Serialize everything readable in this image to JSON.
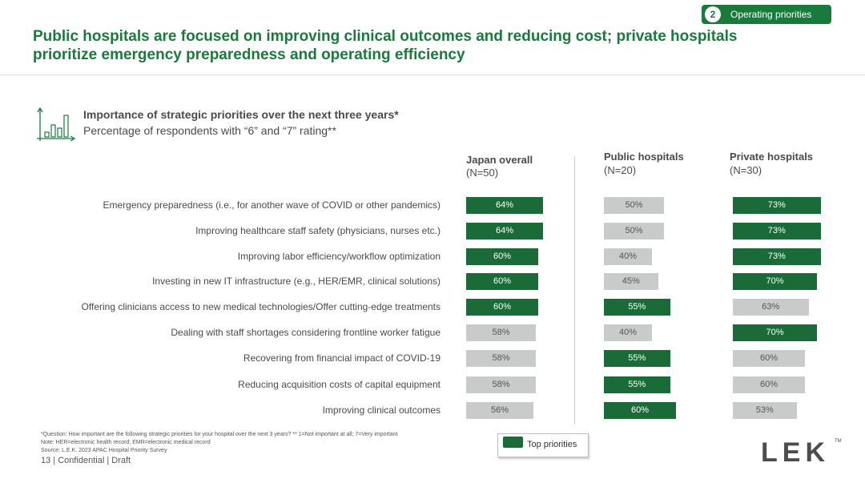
{
  "section": {
    "number": "2",
    "label": "Operating priorities"
  },
  "title": "Public hospitals are focused on improving clinical outcomes and reducing cost; private hospitals prioritize emergency preparedness and operating efficiency",
  "subtitle": {
    "line1": "Importance of strategic priorities over the next three years*",
    "line2": "Percentage of respondents with “6” and “7” rating**"
  },
  "columns": [
    {
      "name": "Japan overall",
      "n": "(N=50)"
    },
    {
      "name": "Public hospitals",
      "n": "(N=20)"
    },
    {
      "name": "Private hospitals",
      "n": "(N=30)"
    }
  ],
  "chart_data": {
    "type": "bar",
    "orientation": "horizontal",
    "title": "Importance of strategic priorities over the next three years*",
    "subtitle": "Percentage of respondents with “6” and “7” rating**",
    "unit": "%",
    "xlim": [
      0,
      100
    ],
    "categories": [
      "Emergency preparedness  (i.e., for another wave of COVID  or other pandemics)",
      "Improving  healthcare  staff safety (physicians,  nurses etc.)",
      "Improving  labor efficiency/workflow  optimization",
      "Investing  in new IT infrastructure  (e.g., HER/EMR,  clinical solutions)",
      "Offering clinicians  access to new medical technologies/Offer  cutting-edge  treatments",
      "Dealing  with staff shortages  considering  frontline  worker fatigue",
      "Recovering  from financial  impact of COVID-19",
      "Reducing  acquisition  costs of capital equipment",
      "Improving  clinical  outcomes"
    ],
    "series": [
      {
        "name": "Japan overall",
        "n": "(N=50)",
        "values": [
          64,
          64,
          60,
          60,
          60,
          58,
          58,
          58,
          56
        ],
        "highlight": [
          true,
          true,
          true,
          true,
          true,
          false,
          false,
          false,
          false
        ]
      },
      {
        "name": "Public hospitals",
        "n": "(N=20)",
        "values": [
          50,
          50,
          40,
          45,
          55,
          40,
          55,
          55,
          60
        ],
        "highlight": [
          false,
          false,
          false,
          false,
          true,
          false,
          true,
          true,
          true
        ]
      },
      {
        "name": "Private hospitals",
        "n": "(N=30)",
        "values": [
          73,
          73,
          73,
          70,
          63,
          70,
          60,
          60,
          53
        ],
        "highlight": [
          true,
          true,
          true,
          true,
          false,
          true,
          false,
          false,
          false
        ]
      }
    ],
    "legend": {
      "label": "Top priorities",
      "color": "#1a6b38",
      "position": "bottom-center"
    },
    "colors": {
      "highlight": "#1a6b38",
      "other": "#c8cbca"
    }
  },
  "footnotes": {
    "question": "*Question: How important are the following strategic priorities for your hospital over the next 3 years?  ** 1=Not important at all; 7=Very important",
    "note": "Note: HER=electronic health record; EMR=electronic medical record",
    "source": "Source:  L.E.K. 2023 APAC Hospital Priority Survey"
  },
  "footer": "13 | Confidential | Draft",
  "logo": {
    "text": "LEK",
    "tm": "TM"
  },
  "colors": {
    "brand_green": "#1a7a3c",
    "bar_green": "#1a6b38",
    "bar_grey": "#c8cbca"
  }
}
